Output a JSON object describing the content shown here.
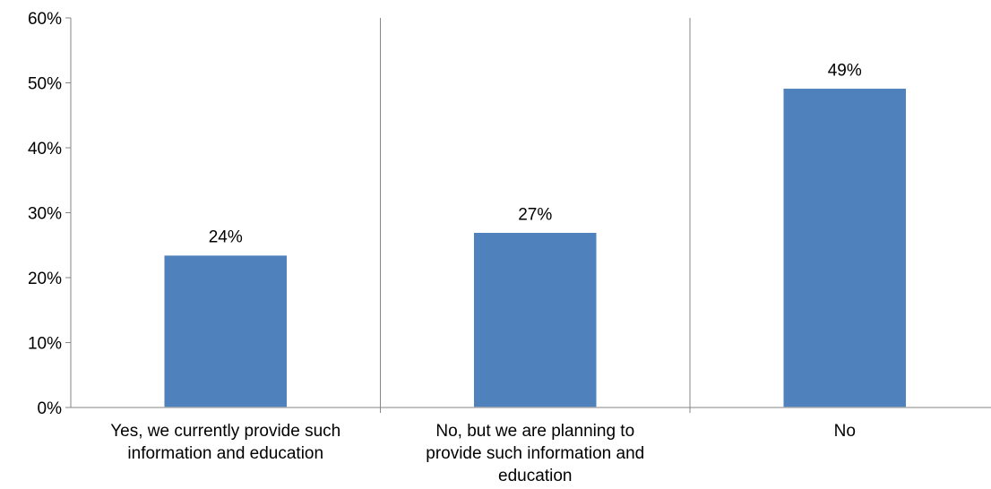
{
  "chart_data": {
    "type": "bar",
    "categories": [
      [
        "Yes, we currently provide such",
        "information and education"
      ],
      [
        "No, but we are planning to",
        "provide such information and",
        "education"
      ],
      [
        "No"
      ]
    ],
    "values": [
      24,
      27,
      49
    ],
    "plotted_values": [
      23.5,
      27,
      49.2
    ],
    "data_labels": [
      "24%",
      "27%",
      "49%"
    ],
    "ylim": [
      0,
      60
    ],
    "yticks": [
      "0%",
      "10%",
      "20%",
      "30%",
      "40%",
      "50%",
      "60%"
    ],
    "ytick_values": [
      0,
      10,
      20,
      30,
      40,
      50,
      60
    ],
    "title": "",
    "xlabel": "",
    "ylabel": "",
    "grid": false,
    "category_separators": true,
    "legend": "none",
    "bar_color": "#4F81BD",
    "axis_color": "#868686"
  }
}
